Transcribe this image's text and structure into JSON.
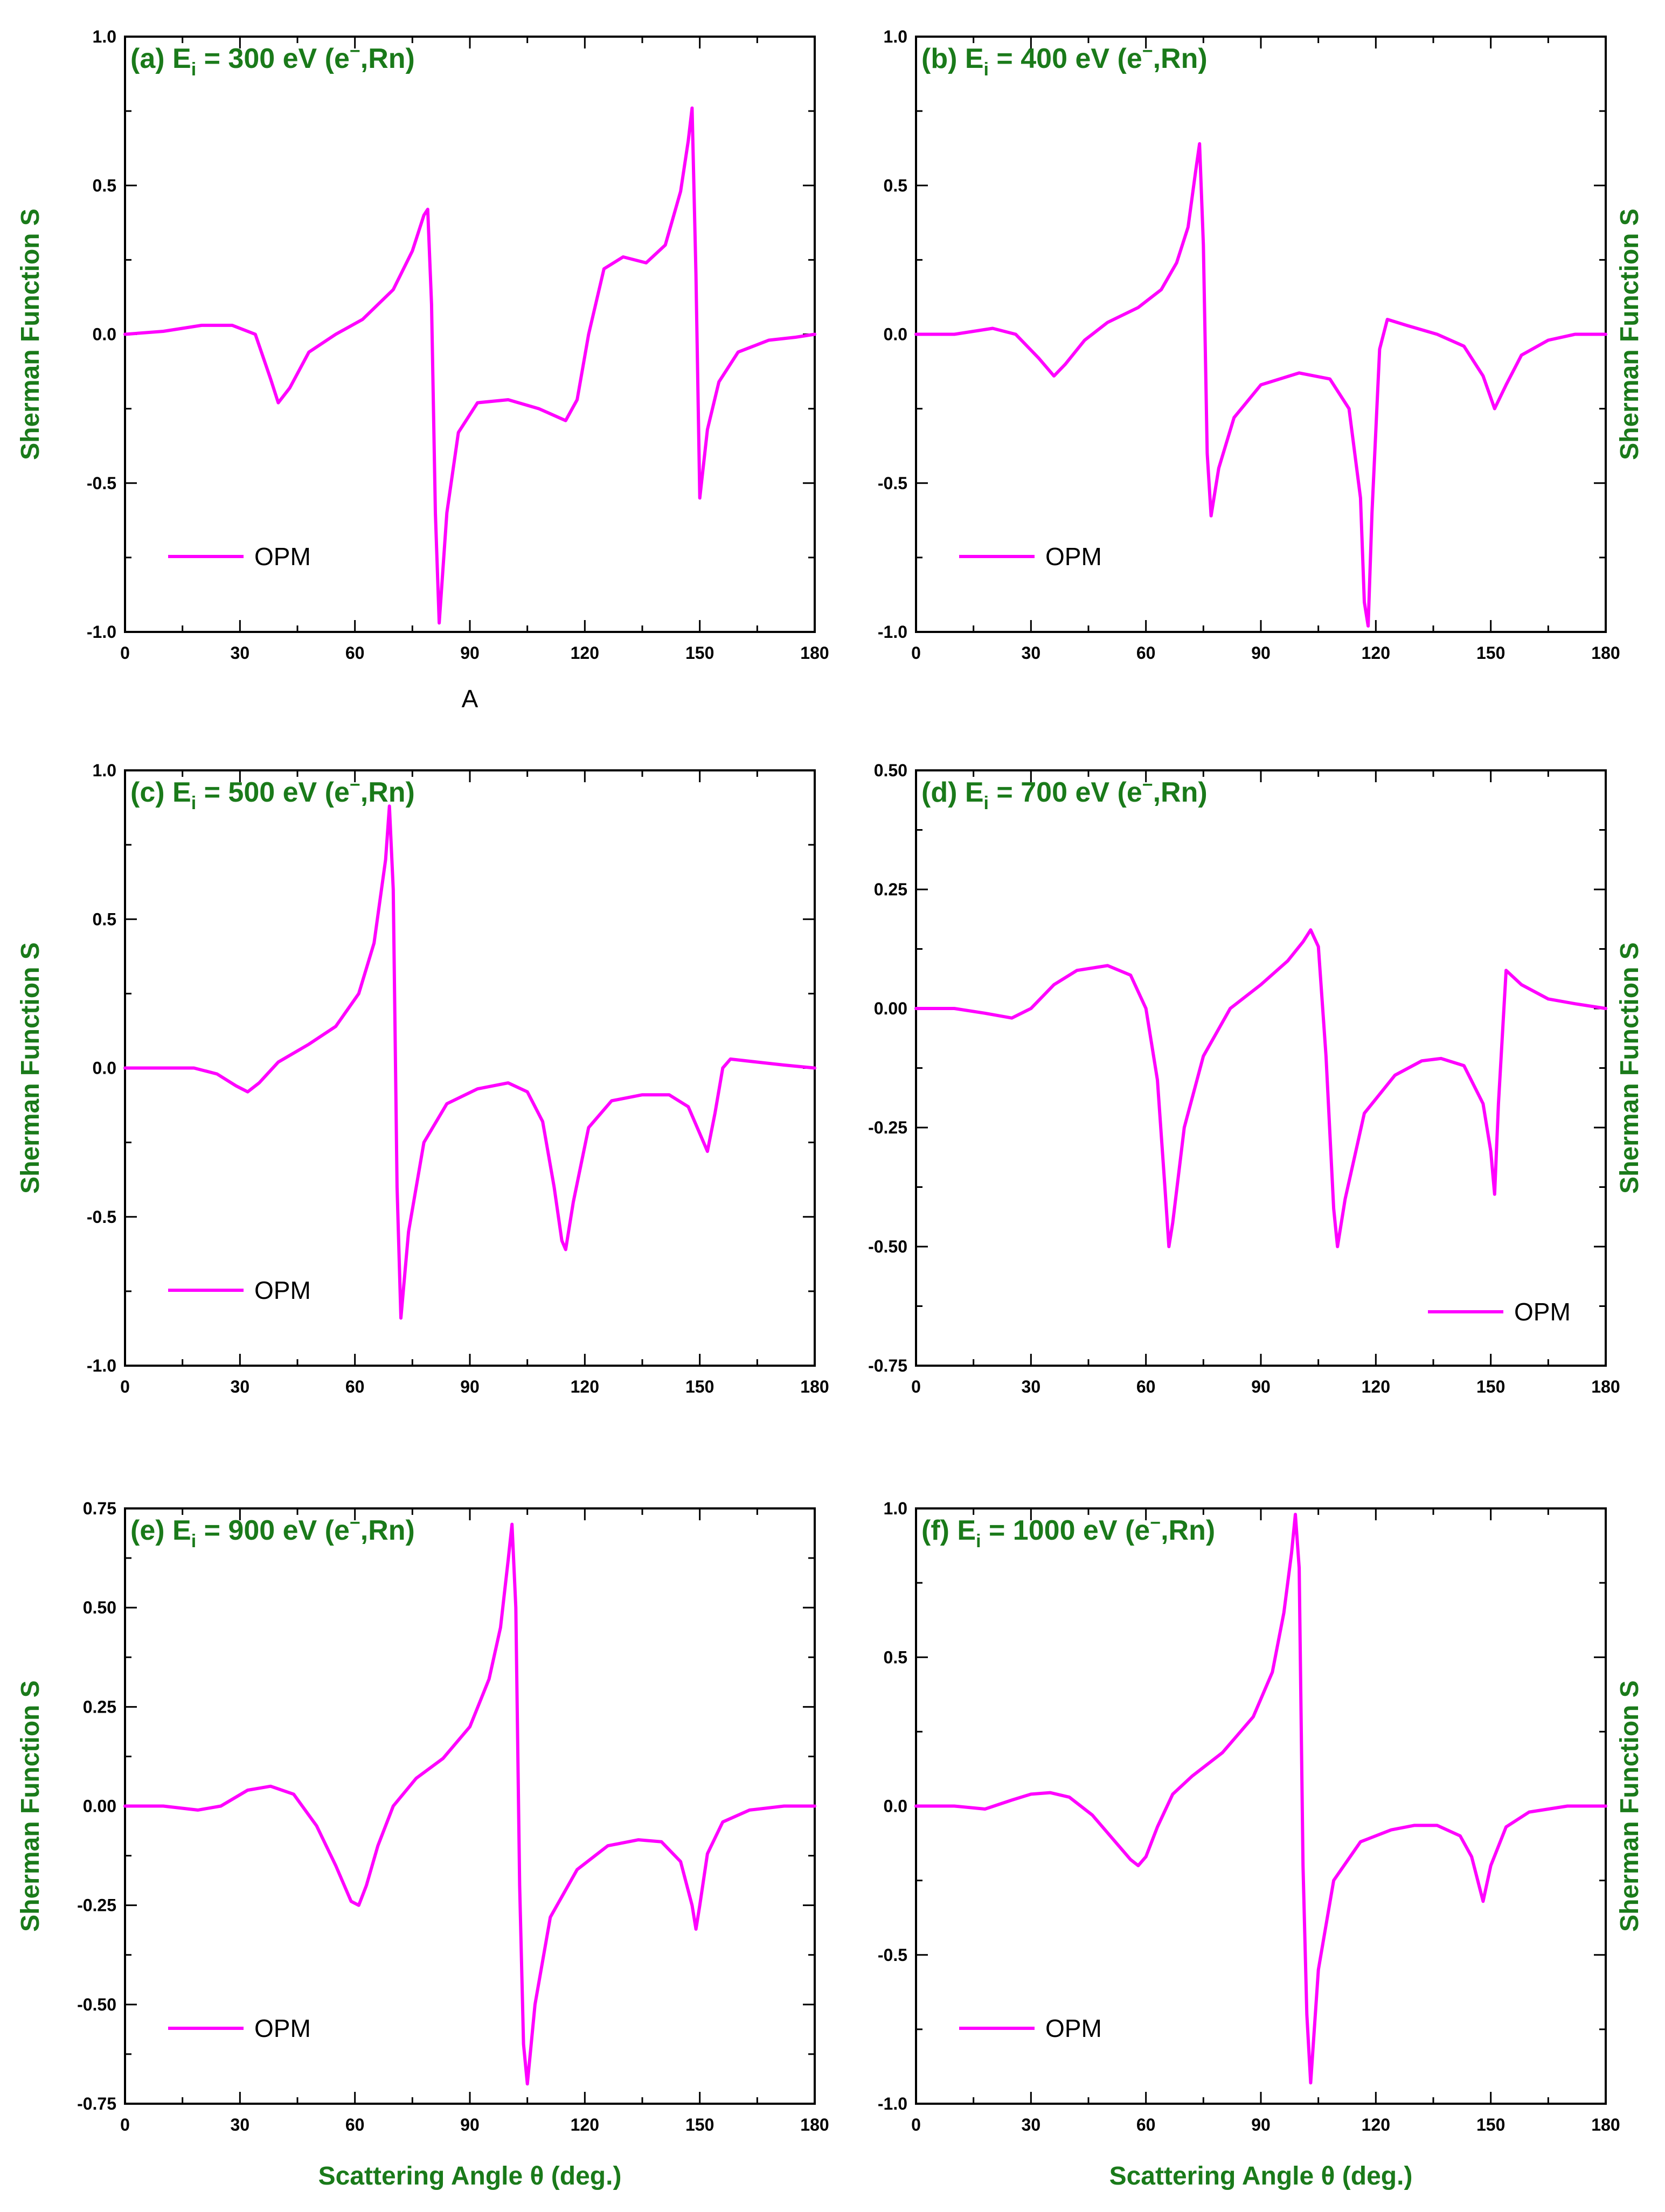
{
  "colors": {
    "curve": "#ff00ff",
    "title": "#1a7a1a",
    "axis": "#000000"
  },
  "chart_data": [
    {
      "type": "line",
      "title_main": "(a) E",
      "title_sub": "i",
      "title_rest": " = 300 eV (e",
      "title_sup": "−",
      "title_end": ",Rn)",
      "xlabel": "",
      "ylabel": "Sherman Function S",
      "ylabel_side": "left",
      "xlim": [
        0,
        180
      ],
      "ylim": [
        -1.0,
        1.0
      ],
      "xticks": [
        "0",
        "30",
        "60",
        "90",
        "120",
        "150",
        "180"
      ],
      "yticks": [
        "-1.0",
        "-0.5",
        "0.0",
        "0.5",
        "1.0"
      ],
      "annotation": "A",
      "legend": {
        "label": "OPM",
        "position": "bottom-left"
      },
      "series": [
        {
          "name": "OPM",
          "x": [
            0,
            10,
            20,
            28,
            34,
            38,
            40,
            43,
            48,
            55,
            62,
            70,
            75,
            78,
            79,
            80,
            81,
            82,
            84,
            87,
            92,
            100,
            108,
            115,
            118,
            121,
            125,
            130,
            136,
            141,
            145,
            147,
            148,
            149,
            150,
            152,
            155,
            160,
            168,
            175,
            180
          ],
          "y": [
            0.0,
            0.01,
            0.03,
            0.03,
            0.0,
            -0.15,
            -0.23,
            -0.18,
            -0.06,
            0.0,
            0.05,
            0.15,
            0.28,
            0.4,
            0.42,
            0.1,
            -0.6,
            -0.97,
            -0.6,
            -0.33,
            -0.23,
            -0.22,
            -0.25,
            -0.29,
            -0.22,
            0.0,
            0.22,
            0.26,
            0.24,
            0.3,
            0.48,
            0.65,
            0.76,
            0.2,
            -0.55,
            -0.32,
            -0.16,
            -0.06,
            -0.02,
            -0.01,
            0.0
          ]
        }
      ]
    },
    {
      "type": "line",
      "title_main": "(b) E",
      "title_sub": "i",
      "title_rest": " = 400 eV (e",
      "title_sup": "−",
      "title_end": ",Rn)",
      "xlabel": "",
      "ylabel": "Sherman Function S",
      "ylabel_side": "right",
      "xlim": [
        0,
        180
      ],
      "ylim": [
        -1.0,
        1.0
      ],
      "xticks": [
        "0",
        "30",
        "60",
        "90",
        "120",
        "150",
        "180"
      ],
      "yticks": [
        "-1.0",
        "-0.5",
        "0.0",
        "0.5",
        "1.0"
      ],
      "legend": {
        "label": "OPM",
        "position": "bottom-left"
      },
      "series": [
        {
          "name": "OPM",
          "x": [
            0,
            10,
            20,
            26,
            32,
            36,
            39,
            44,
            50,
            58,
            64,
            68,
            71,
            73,
            74,
            75,
            76,
            77,
            79,
            83,
            90,
            100,
            108,
            113,
            116,
            117,
            118,
            119,
            121,
            123,
            128,
            136,
            143,
            148,
            151,
            154,
            158,
            165,
            172,
            180
          ],
          "y": [
            0.0,
            0.0,
            0.02,
            0.0,
            -0.08,
            -0.14,
            -0.1,
            -0.02,
            0.04,
            0.09,
            0.15,
            0.24,
            0.36,
            0.55,
            0.64,
            0.3,
            -0.4,
            -0.61,
            -0.45,
            -0.28,
            -0.17,
            -0.13,
            -0.15,
            -0.25,
            -0.55,
            -0.9,
            -0.98,
            -0.6,
            -0.05,
            0.05,
            0.03,
            0.0,
            -0.04,
            -0.14,
            -0.25,
            -0.17,
            -0.07,
            -0.02,
            0.0,
            0.0
          ]
        }
      ]
    },
    {
      "type": "line",
      "title_main": "(c) E",
      "title_sub": "i",
      "title_rest": " = 500 eV (e",
      "title_sup": "−",
      "title_end": ",Rn)",
      "xlabel": "",
      "ylabel": "Sherman Function S",
      "ylabel_side": "left",
      "xlim": [
        0,
        180
      ],
      "ylim": [
        -1.0,
        1.0
      ],
      "xticks": [
        "0",
        "30",
        "60",
        "90",
        "120",
        "150",
        "180"
      ],
      "yticks": [
        "-1.0",
        "-0.5",
        "0.0",
        "0.5",
        "1.0"
      ],
      "legend": {
        "label": "OPM",
        "position": "bottom-left"
      },
      "series": [
        {
          "name": "OPM",
          "x": [
            0,
            10,
            18,
            24,
            29,
            32,
            35,
            40,
            48,
            55,
            61,
            65,
            68,
            69,
            70,
            71,
            72,
            74,
            78,
            84,
            92,
            100,
            105,
            109,
            112,
            114,
            115,
            117,
            121,
            127,
            135,
            142,
            147,
            150,
            152,
            154,
            156,
            158,
            165,
            172,
            180
          ],
          "y": [
            0.0,
            0.0,
            0.0,
            -0.02,
            -0.06,
            -0.08,
            -0.05,
            0.02,
            0.08,
            0.14,
            0.25,
            0.42,
            0.7,
            0.88,
            0.6,
            -0.4,
            -0.84,
            -0.55,
            -0.25,
            -0.12,
            -0.07,
            -0.05,
            -0.08,
            -0.18,
            -0.4,
            -0.58,
            -0.61,
            -0.45,
            -0.2,
            -0.11,
            -0.09,
            -0.09,
            -0.13,
            -0.22,
            -0.28,
            -0.15,
            0.0,
            0.03,
            0.02,
            0.01,
            0.0
          ]
        }
      ]
    },
    {
      "type": "line",
      "title_main": "(d) E",
      "title_sub": "i",
      "title_rest": " = 700 eV (e",
      "title_sup": "−",
      "title_end": ",Rn)",
      "xlabel": "",
      "ylabel": "Sherman Function S",
      "ylabel_side": "right",
      "xlim": [
        0,
        180
      ],
      "ylim": [
        -0.75,
        0.5
      ],
      "xticks": [
        "0",
        "30",
        "60",
        "90",
        "120",
        "150",
        "180"
      ],
      "yticks": [
        "-0.75",
        "-0.50",
        "-0.25",
        "0.00",
        "0.25",
        "0.50"
      ],
      "legend": {
        "label": "OPM",
        "position": "bottom-right"
      },
      "series": [
        {
          "name": "OPM",
          "x": [
            0,
            10,
            18,
            25,
            30,
            36,
            42,
            50,
            56,
            60,
            63,
            65,
            66,
            67,
            70,
            75,
            82,
            90,
            97,
            101,
            103,
            105,
            107,
            109,
            110,
            112,
            117,
            125,
            132,
            137,
            143,
            148,
            150,
            151,
            152,
            154,
            158,
            165,
            172,
            180
          ],
          "y": [
            0.0,
            0.0,
            -0.01,
            -0.02,
            0.0,
            0.05,
            0.08,
            0.09,
            0.07,
            0.0,
            -0.15,
            -0.38,
            -0.5,
            -0.45,
            -0.25,
            -0.1,
            0.0,
            0.05,
            0.1,
            0.14,
            0.165,
            0.13,
            -0.1,
            -0.42,
            -0.5,
            -0.4,
            -0.22,
            -0.14,
            -0.11,
            -0.105,
            -0.12,
            -0.2,
            -0.3,
            -0.39,
            -0.2,
            0.08,
            0.05,
            0.02,
            0.01,
            0.0
          ]
        }
      ]
    },
    {
      "type": "line",
      "title_main": "(e) E",
      "title_sub": "i",
      "title_rest": " = 900 eV (e",
      "title_sup": "−",
      "title_end": ",Rn)",
      "xlabel": "Scattering Angle θ (deg.)",
      "ylabel": "Sherman Function S",
      "ylabel_side": "left",
      "xlim": [
        0,
        180
      ],
      "ylim": [
        -0.75,
        0.75
      ],
      "xticks": [
        "0",
        "30",
        "60",
        "90",
        "120",
        "150",
        "180"
      ],
      "yticks": [
        "-0.75",
        "-0.50",
        "-0.25",
        "0.00",
        "0.25",
        "0.50",
        "0.75"
      ],
      "legend": {
        "label": "OPM",
        "position": "bottom-left"
      },
      "series": [
        {
          "name": "OPM",
          "x": [
            0,
            10,
            19,
            25,
            32,
            38,
            44,
            50,
            55,
            59,
            61,
            63,
            66,
            70,
            76,
            83,
            90,
            95,
            98,
            100,
            101,
            102,
            103,
            104,
            105,
            107,
            111,
            118,
            126,
            134,
            140,
            145,
            148,
            149,
            150,
            152,
            156,
            163,
            172,
            180
          ],
          "y": [
            0.0,
            0.0,
            -0.01,
            0.0,
            0.04,
            0.05,
            0.03,
            -0.05,
            -0.15,
            -0.24,
            -0.25,
            -0.2,
            -0.1,
            0.0,
            0.07,
            0.12,
            0.2,
            0.32,
            0.45,
            0.62,
            0.71,
            0.5,
            -0.2,
            -0.6,
            -0.7,
            -0.5,
            -0.28,
            -0.16,
            -0.1,
            -0.085,
            -0.09,
            -0.14,
            -0.25,
            -0.31,
            -0.25,
            -0.12,
            -0.04,
            -0.01,
            0.0,
            0.0
          ]
        }
      ]
    },
    {
      "type": "line",
      "title_main": "(f) E",
      "title_sub": "i",
      "title_rest": " = 1000 eV (e",
      "title_sup": "−",
      "title_end": ",Rn)",
      "xlabel": "Scattering Angle θ (deg.)",
      "ylabel": "Sherman Function S",
      "ylabel_side": "right",
      "xlim": [
        0,
        180
      ],
      "ylim": [
        -1.0,
        1.0
      ],
      "xticks": [
        "0",
        "30",
        "60",
        "90",
        "120",
        "150",
        "180"
      ],
      "yticks": [
        "-1.0",
        "-0.5",
        "0.0",
        "0.5",
        "1.0"
      ],
      "legend": {
        "label": "OPM",
        "position": "bottom-left"
      },
      "series": [
        {
          "name": "OPM",
          "x": [
            0,
            10,
            18,
            25,
            30,
            35,
            40,
            46,
            52,
            56,
            58,
            60,
            63,
            67,
            72,
            80,
            88,
            93,
            96,
            98,
            99,
            100,
            101,
            102,
            103,
            105,
            109,
            116,
            124,
            130,
            136,
            142,
            145,
            147,
            148,
            150,
            154,
            160,
            170,
            180
          ],
          "y": [
            0.0,
            0.0,
            -0.01,
            0.02,
            0.04,
            0.045,
            0.03,
            -0.03,
            -0.12,
            -0.18,
            -0.2,
            -0.17,
            -0.07,
            0.04,
            0.1,
            0.18,
            0.3,
            0.45,
            0.65,
            0.85,
            0.98,
            0.8,
            -0.2,
            -0.7,
            -0.93,
            -0.55,
            -0.25,
            -0.12,
            -0.08,
            -0.065,
            -0.065,
            -0.1,
            -0.17,
            -0.27,
            -0.32,
            -0.2,
            -0.07,
            -0.02,
            0.0,
            0.0
          ]
        }
      ]
    }
  ]
}
